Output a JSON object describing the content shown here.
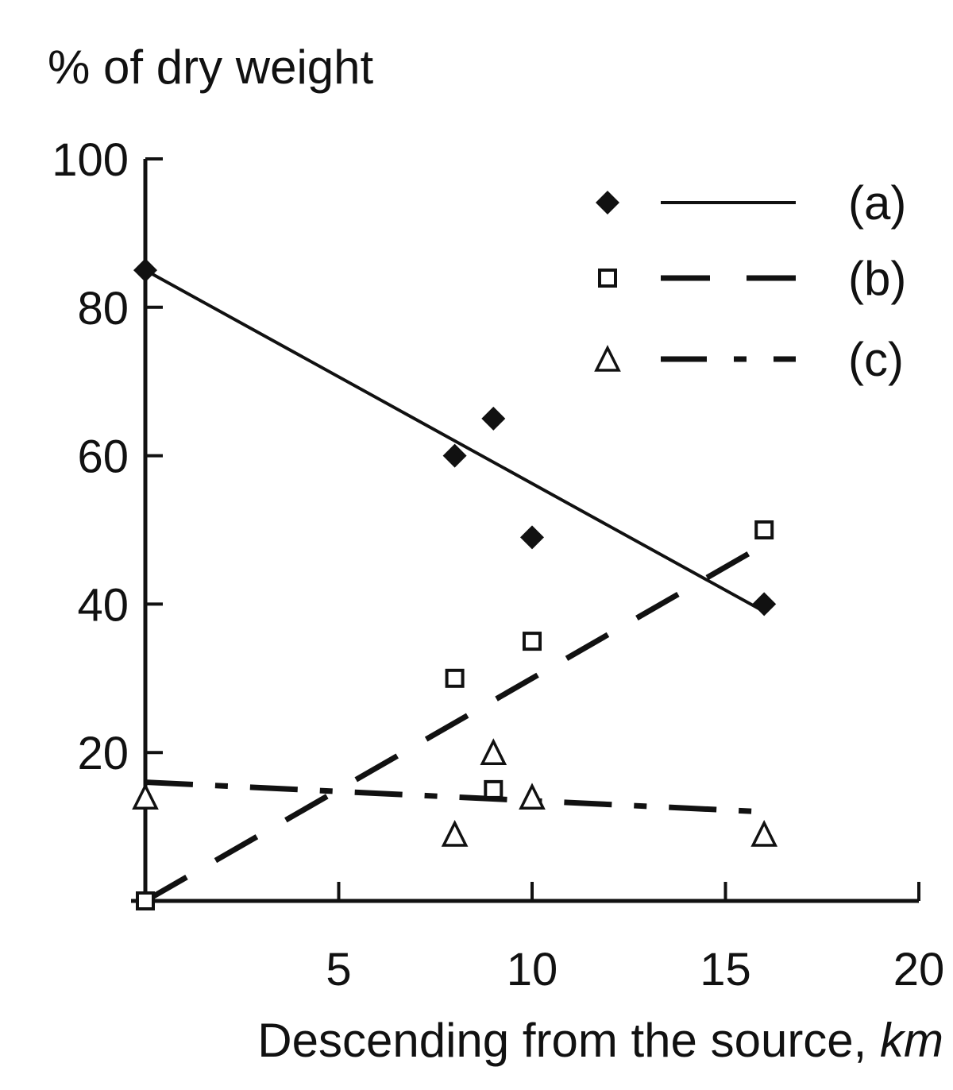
{
  "chart_data": {
    "type": "scatter",
    "ylabel": "% of dry weight",
    "xlabel_main": "Descending from the source, ",
    "xlabel_unit": "km",
    "xlim": [
      0,
      20
    ],
    "ylim": [
      0,
      100
    ],
    "xticks": [
      5,
      10,
      15,
      20
    ],
    "yticks": [
      20,
      40,
      60,
      80,
      100
    ],
    "grid": false,
    "legend_position": "top-right",
    "series": [
      {
        "name": "(a)",
        "marker": "filled-diamond",
        "line_style": "solid",
        "x": [
          0,
          8,
          9,
          10,
          16
        ],
        "y": [
          85,
          60,
          65,
          49,
          40
        ],
        "trend": {
          "x": [
            0,
            16
          ],
          "y": [
            85,
            39
          ]
        }
      },
      {
        "name": "(b)",
        "marker": "open-square",
        "line_style": "dashed",
        "x": [
          0,
          8,
          9,
          10,
          16
        ],
        "y": [
          0,
          30,
          15,
          35,
          50
        ],
        "trend": {
          "x": [
            0,
            16
          ],
          "y": [
            0,
            48
          ]
        }
      },
      {
        "name": "(c)",
        "marker": "open-triangle",
        "line_style": "dash-dot",
        "x": [
          0,
          8,
          9,
          10,
          16
        ],
        "y": [
          14,
          9,
          20,
          14,
          9
        ],
        "trend": {
          "x": [
            0,
            16
          ],
          "y": [
            16,
            12
          ]
        }
      }
    ]
  }
}
